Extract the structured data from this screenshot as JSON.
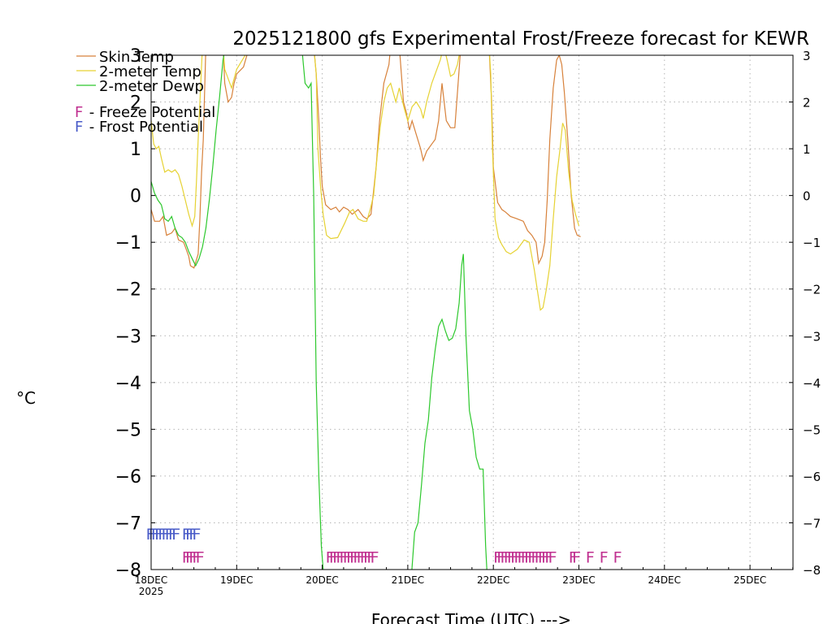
{
  "chart_data": {
    "type": "line",
    "title": "2025121800 gfs Experimental Frost/Freeze forecast for KEWR",
    "xlabel": "Forecast Time (UTC) --->",
    "ylabel": "°C",
    "ylim": [
      -8,
      3
    ],
    "xlim_days": [
      0,
      7.5
    ],
    "grid": true,
    "legend_position": "top-left",
    "x_ticks": [
      {
        "label": "18DEC",
        "sub": "2025",
        "day": 0
      },
      {
        "label": "19DEC",
        "sub": "",
        "day": 1
      },
      {
        "label": "20DEC",
        "sub": "",
        "day": 2
      },
      {
        "label": "21DEC",
        "sub": "",
        "day": 3
      },
      {
        "label": "22DEC",
        "sub": "",
        "day": 4
      },
      {
        "label": "23DEC",
        "sub": "",
        "day": 5
      },
      {
        "label": "24DEC",
        "sub": "",
        "day": 6
      },
      {
        "label": "25DEC",
        "sub": "",
        "day": 7
      }
    ],
    "y_ticks": [
      {
        "value": 3,
        "left": "3",
        "right": "3"
      },
      {
        "value": 2,
        "left": "2",
        "right": "2"
      },
      {
        "value": 1,
        "left": "1",
        "right": "1"
      },
      {
        "value": 0,
        "left": "0",
        "right": "0"
      },
      {
        "value": -1,
        "left": "−1",
        "right": "−1"
      },
      {
        "value": -2,
        "left": "−2",
        "right": "−2"
      },
      {
        "value": -3,
        "left": "−3",
        "right": "−3"
      },
      {
        "value": -4,
        "left": "−4",
        "right": "−4"
      },
      {
        "value": -5,
        "left": "−5",
        "right": "−5"
      },
      {
        "value": -6,
        "left": "−6",
        "right": "−6"
      },
      {
        "value": -7,
        "left": "−7",
        "right": "−7"
      },
      {
        "value": -8,
        "left": "−8",
        "right": "−8"
      }
    ],
    "legend": {
      "series": [
        {
          "name": "Skin Temp",
          "color": "#d7813a"
        },
        {
          "name": "2-meter Temp",
          "color": "#e6d233"
        },
        {
          "name": "2-meter Dewp",
          "color": "#2dc82d"
        }
      ],
      "potentials": [
        {
          "symbol": "F",
          "text": " - Freeze Potential",
          "color": "#c03090"
        },
        {
          "symbol": "F",
          "text": " - Frost Potential",
          "color": "#4a5cc8"
        }
      ]
    },
    "series": [
      {
        "name": "Skin Temp",
        "color": "#d7813a",
        "points": [
          [
            0,
            -0.3
          ],
          [
            0.04,
            -0.55
          ],
          [
            0.1,
            -0.55
          ],
          [
            0.14,
            -0.45
          ],
          [
            0.18,
            -0.85
          ],
          [
            0.24,
            -0.8
          ],
          [
            0.28,
            -0.7
          ],
          [
            0.32,
            -0.95
          ],
          [
            0.38,
            -1.0
          ],
          [
            0.44,
            -1.3
          ],
          [
            0.46,
            -1.5
          ],
          [
            0.5,
            -1.55
          ],
          [
            0.55,
            -1.25
          ],
          [
            0.57,
            -0.5
          ],
          [
            0.59,
            0.5
          ],
          [
            0.61,
            1.2
          ],
          [
            0.64,
            3.2
          ],
          [
            0.7,
            3.2
          ],
          [
            0.84,
            3.2
          ],
          [
            0.86,
            2.4
          ],
          [
            0.9,
            2.0
          ],
          [
            0.94,
            2.1
          ],
          [
            0.97,
            2.4
          ],
          [
            1.0,
            2.6
          ],
          [
            1.08,
            2.75
          ],
          [
            1.12,
            3.0
          ],
          [
            1.15,
            3.2
          ],
          [
            1.9,
            3.2
          ],
          [
            1.93,
            2.6
          ],
          [
            1.96,
            1.6
          ],
          [
            1.98,
            0.8
          ],
          [
            2.0,
            0.2
          ],
          [
            2.04,
            -0.2
          ],
          [
            2.1,
            -0.3
          ],
          [
            2.16,
            -0.25
          ],
          [
            2.2,
            -0.35
          ],
          [
            2.25,
            -0.25
          ],
          [
            2.3,
            -0.3
          ],
          [
            2.35,
            -0.4
          ],
          [
            2.42,
            -0.3
          ],
          [
            2.48,
            -0.45
          ],
          [
            2.52,
            -0.5
          ],
          [
            2.57,
            -0.4
          ],
          [
            2.6,
            0.1
          ],
          [
            2.63,
            0.6
          ],
          [
            2.67,
            1.6
          ],
          [
            2.72,
            2.4
          ],
          [
            2.78,
            2.8
          ],
          [
            2.8,
            3.2
          ],
          [
            2.9,
            3.2
          ],
          [
            2.95,
            2.0
          ],
          [
            2.98,
            1.8
          ],
          [
            3.02,
            1.4
          ],
          [
            3.05,
            1.6
          ],
          [
            3.1,
            1.3
          ],
          [
            3.15,
            1.0
          ],
          [
            3.18,
            0.75
          ],
          [
            3.22,
            0.95
          ],
          [
            3.28,
            1.1
          ],
          [
            3.32,
            1.2
          ],
          [
            3.36,
            1.6
          ],
          [
            3.4,
            2.4
          ],
          [
            3.45,
            1.6
          ],
          [
            3.5,
            1.45
          ],
          [
            3.55,
            1.45
          ],
          [
            3.58,
            2.2
          ],
          [
            3.62,
            3.2
          ],
          [
            3.95,
            3.2
          ],
          [
            3.98,
            2.0
          ],
          [
            4.0,
            0.6
          ],
          [
            4.05,
            -0.15
          ],
          [
            4.1,
            -0.3
          ],
          [
            4.14,
            -0.35
          ],
          [
            4.2,
            -0.45
          ],
          [
            4.28,
            -0.5
          ],
          [
            4.35,
            -0.55
          ],
          [
            4.4,
            -0.75
          ],
          [
            4.45,
            -0.85
          ],
          [
            4.5,
            -1.0
          ],
          [
            4.53,
            -1.45
          ],
          [
            4.57,
            -1.3
          ],
          [
            4.6,
            -1.0
          ],
          [
            4.63,
            -0.1
          ],
          [
            4.66,
            1.2
          ],
          [
            4.7,
            2.3
          ],
          [
            4.74,
            2.9
          ],
          [
            4.77,
            3.0
          ],
          [
            4.8,
            2.8
          ],
          [
            4.83,
            2.2
          ],
          [
            4.87,
            1.2
          ],
          [
            4.91,
            0.0
          ],
          [
            4.95,
            -0.7
          ],
          [
            4.98,
            -0.85
          ],
          [
            5.02,
            -0.88
          ]
        ]
      },
      {
        "name": "2-meter Temp",
        "color": "#e6d233",
        "points": [
          [
            0,
            1.6
          ],
          [
            0.03,
            1.1
          ],
          [
            0.06,
            1.0
          ],
          [
            0.09,
            1.05
          ],
          [
            0.12,
            0.8
          ],
          [
            0.16,
            0.5
          ],
          [
            0.2,
            0.55
          ],
          [
            0.24,
            0.5
          ],
          [
            0.28,
            0.55
          ],
          [
            0.32,
            0.45
          ],
          [
            0.36,
            0.2
          ],
          [
            0.4,
            -0.1
          ],
          [
            0.44,
            -0.4
          ],
          [
            0.48,
            -0.65
          ],
          [
            0.51,
            -0.45
          ],
          [
            0.53,
            0.3
          ],
          [
            0.55,
            1.2
          ],
          [
            0.58,
            2.4
          ],
          [
            0.6,
            3.2
          ],
          [
            0.7,
            3.2
          ],
          [
            0.84,
            3.2
          ],
          [
            0.86,
            2.7
          ],
          [
            0.9,
            2.5
          ],
          [
            0.94,
            2.3
          ],
          [
            0.97,
            2.5
          ],
          [
            1.0,
            2.7
          ],
          [
            1.1,
            3.0
          ],
          [
            1.14,
            3.2
          ],
          [
            1.9,
            3.2
          ],
          [
            1.93,
            2.6
          ],
          [
            1.95,
            1.0
          ],
          [
            1.98,
            0.2
          ],
          [
            2.01,
            -0.4
          ],
          [
            2.05,
            -0.85
          ],
          [
            2.1,
            -0.92
          ],
          [
            2.18,
            -0.9
          ],
          [
            2.22,
            -0.75
          ],
          [
            2.26,
            -0.6
          ],
          [
            2.32,
            -0.35
          ],
          [
            2.36,
            -0.3
          ],
          [
            2.42,
            -0.5
          ],
          [
            2.48,
            -0.55
          ],
          [
            2.52,
            -0.55
          ],
          [
            2.56,
            -0.3
          ],
          [
            2.6,
            0.0
          ],
          [
            2.64,
            0.8
          ],
          [
            2.68,
            1.5
          ],
          [
            2.72,
            2.0
          ],
          [
            2.76,
            2.3
          ],
          [
            2.8,
            2.4
          ],
          [
            2.86,
            2.0
          ],
          [
            2.9,
            2.3
          ],
          [
            2.96,
            1.85
          ],
          [
            3.0,
            1.6
          ],
          [
            3.05,
            1.9
          ],
          [
            3.1,
            2.0
          ],
          [
            3.15,
            1.85
          ],
          [
            3.18,
            1.65
          ],
          [
            3.22,
            2.0
          ],
          [
            3.28,
            2.4
          ],
          [
            3.34,
            2.7
          ],
          [
            3.38,
            2.9
          ],
          [
            3.42,
            3.2
          ],
          [
            3.46,
            2.9
          ],
          [
            3.5,
            2.55
          ],
          [
            3.54,
            2.6
          ],
          [
            3.58,
            2.8
          ],
          [
            3.62,
            3.2
          ],
          [
            3.95,
            3.2
          ],
          [
            3.97,
            2.6
          ],
          [
            3.99,
            1.0
          ],
          [
            4.02,
            -0.5
          ],
          [
            4.06,
            -0.9
          ],
          [
            4.1,
            -1.05
          ],
          [
            4.15,
            -1.2
          ],
          [
            4.2,
            -1.25
          ],
          [
            4.28,
            -1.15
          ],
          [
            4.36,
            -0.95
          ],
          [
            4.42,
            -1.0
          ],
          [
            4.48,
            -1.6
          ],
          [
            4.52,
            -2.1
          ],
          [
            4.55,
            -2.45
          ],
          [
            4.58,
            -2.4
          ],
          [
            4.62,
            -2.0
          ],
          [
            4.66,
            -1.5
          ],
          [
            4.7,
            -0.5
          ],
          [
            4.74,
            0.4
          ],
          [
            4.78,
            1.0
          ],
          [
            4.81,
            1.55
          ],
          [
            4.84,
            1.4
          ],
          [
            4.88,
            0.5
          ],
          [
            4.92,
            -0.1
          ],
          [
            4.96,
            -0.4
          ],
          [
            5.0,
            -0.65
          ]
        ]
      },
      {
        "name": "2-meter Dewp",
        "color": "#2dc82d",
        "points": [
          [
            0,
            0.3
          ],
          [
            0.04,
            0.05
          ],
          [
            0.08,
            -0.1
          ],
          [
            0.12,
            -0.2
          ],
          [
            0.16,
            -0.5
          ],
          [
            0.2,
            -0.55
          ],
          [
            0.24,
            -0.45
          ],
          [
            0.28,
            -0.7
          ],
          [
            0.32,
            -0.85
          ],
          [
            0.36,
            -0.9
          ],
          [
            0.4,
            -1.0
          ],
          [
            0.44,
            -1.2
          ],
          [
            0.48,
            -1.35
          ],
          [
            0.52,
            -1.5
          ],
          [
            0.56,
            -1.35
          ],
          [
            0.6,
            -1.1
          ],
          [
            0.64,
            -0.7
          ],
          [
            0.68,
            -0.1
          ],
          [
            0.72,
            0.6
          ],
          [
            0.76,
            1.4
          ],
          [
            0.8,
            2.1
          ],
          [
            0.84,
            2.9
          ],
          [
            0.87,
            3.2
          ],
          [
            1.76,
            3.2
          ],
          [
            1.8,
            2.4
          ],
          [
            1.84,
            2.3
          ],
          [
            1.87,
            2.4
          ],
          [
            1.9,
            0.0
          ],
          [
            1.93,
            -4.0
          ],
          [
            1.96,
            -6.0
          ],
          [
            1.99,
            -7.5
          ],
          [
            2.02,
            -8.2
          ],
          [
            3.04,
            -8.2
          ],
          [
            3.08,
            -7.2
          ],
          [
            3.12,
            -7.0
          ],
          [
            3.16,
            -6.2
          ],
          [
            3.2,
            -5.3
          ],
          [
            3.24,
            -4.8
          ],
          [
            3.28,
            -3.9
          ],
          [
            3.32,
            -3.3
          ],
          [
            3.36,
            -2.8
          ],
          [
            3.4,
            -2.65
          ],
          [
            3.44,
            -2.9
          ],
          [
            3.48,
            -3.1
          ],
          [
            3.52,
            -3.05
          ],
          [
            3.56,
            -2.85
          ],
          [
            3.6,
            -2.3
          ],
          [
            3.63,
            -1.5
          ],
          [
            3.65,
            -1.25
          ],
          [
            3.68,
            -3.0
          ],
          [
            3.72,
            -4.6
          ],
          [
            3.76,
            -5.0
          ],
          [
            3.8,
            -5.6
          ],
          [
            3.84,
            -5.85
          ],
          [
            3.88,
            -5.85
          ],
          [
            3.91,
            -7.5
          ],
          [
            3.93,
            -8.2
          ]
        ]
      }
    ],
    "frost_marks": {
      "label": "F",
      "color": "#4a5cc8",
      "y": -7.2,
      "days": [
        -0.06,
        -0.03,
        0.0,
        0.04,
        0.08,
        0.12,
        0.16,
        0.2,
        0.24,
        0.36,
        0.4,
        0.44,
        0.48
      ]
    },
    "freeze_marks": {
      "label": "F",
      "color": "#c03090",
      "y": -7.7,
      "days": [
        0.36,
        0.4,
        0.44,
        0.48,
        0.52,
        2.04,
        2.08,
        2.12,
        2.16,
        2.2,
        2.24,
        2.28,
        2.32,
        2.36,
        2.4,
        2.44,
        2.48,
        2.52,
        2.56,
        4.0,
        4.04,
        4.08,
        4.12,
        4.16,
        4.2,
        4.24,
        4.28,
        4.32,
        4.36,
        4.4,
        4.44,
        4.48,
        4.52,
        4.56,
        4.6,
        4.64,
        4.88,
        4.92,
        5.08,
        5.24,
        5.4
      ]
    }
  }
}
